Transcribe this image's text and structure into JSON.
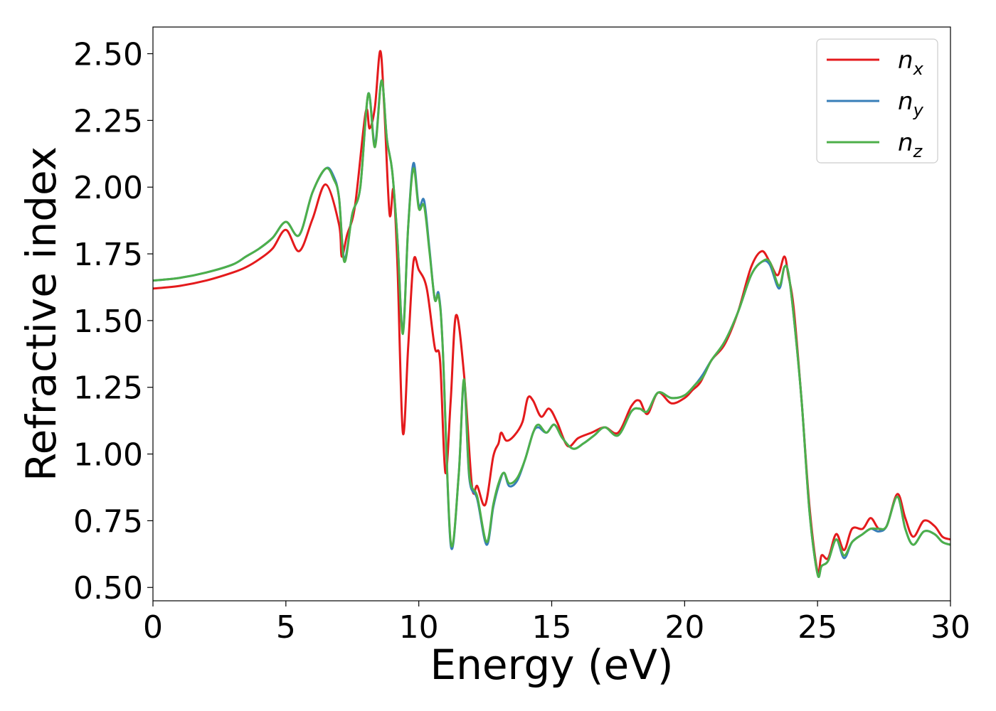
{
  "chart_data": {
    "type": "line",
    "xlabel": "Energy (eV)",
    "ylabel": "Refractive index",
    "xlim": [
      0,
      30
    ],
    "ylim": [
      0.45,
      2.6
    ],
    "xticks": [
      0,
      5,
      10,
      15,
      20,
      25,
      30
    ],
    "yticks": [
      0.5,
      0.75,
      1.0,
      1.25,
      1.5,
      1.75,
      2.0,
      2.25,
      2.5
    ],
    "ytick_labels": [
      "0.50",
      "0.75",
      "1.00",
      "1.25",
      "1.50",
      "1.75",
      "2.00",
      "2.25",
      "2.50"
    ],
    "grid": false,
    "legend_position": "upper right",
    "series": [
      {
        "name": "n",
        "subscript": "x",
        "color": "#e41a1c",
        "x": [
          0,
          1,
          2,
          3,
          3.5,
          4,
          4.5,
          5,
          5.5,
          6,
          6.5,
          7,
          7.1,
          7.3,
          7.6,
          8,
          8.15,
          8.35,
          8.55,
          8.7,
          8.9,
          9.05,
          9.2,
          9.4,
          9.6,
          9.8,
          10,
          10.3,
          10.6,
          10.8,
          11,
          11.2,
          11.4,
          11.7,
          12,
          12.2,
          12.5,
          12.8,
          13,
          13.1,
          13.3,
          13.6,
          13.9,
          14.1,
          14.3,
          14.6,
          14.9,
          15.2,
          15.6,
          16,
          16.5,
          17,
          17.5,
          18,
          18.3,
          18.6,
          19,
          19.5,
          20,
          20.3,
          20.6,
          21,
          21.5,
          22,
          22.5,
          22.9,
          23.2,
          23.5,
          23.75,
          23.9,
          24.1,
          24.4,
          24.7,
          25,
          25.15,
          25.4,
          25.7,
          26,
          26.3,
          26.7,
          27,
          27.3,
          27.6,
          28,
          28.3,
          28.6,
          29,
          29.4,
          29.7,
          30
        ],
        "values": [
          1.62,
          1.63,
          1.65,
          1.68,
          1.7,
          1.73,
          1.77,
          1.84,
          1.76,
          1.88,
          2.01,
          1.86,
          1.74,
          1.82,
          1.93,
          2.28,
          2.22,
          2.3,
          2.51,
          2.3,
          1.9,
          1.99,
          1.7,
          1.08,
          1.4,
          1.72,
          1.69,
          1.62,
          1.4,
          1.35,
          0.93,
          1.2,
          1.52,
          1.3,
          0.88,
          0.88,
          0.81,
          0.99,
          1.04,
          1.08,
          1.05,
          1.07,
          1.12,
          1.21,
          1.2,
          1.14,
          1.17,
          1.12,
          1.03,
          1.06,
          1.08,
          1.1,
          1.08,
          1.18,
          1.2,
          1.15,
          1.23,
          1.19,
          1.21,
          1.24,
          1.27,
          1.35,
          1.41,
          1.53,
          1.7,
          1.76,
          1.72,
          1.67,
          1.74,
          1.67,
          1.55,
          1.2,
          0.8,
          0.56,
          0.62,
          0.61,
          0.7,
          0.64,
          0.72,
          0.72,
          0.76,
          0.72,
          0.73,
          0.85,
          0.76,
          0.69,
          0.75,
          0.73,
          0.69,
          0.68
        ]
      },
      {
        "name": "n",
        "subscript": "y",
        "color": "#377eb8",
        "x": [
          0,
          1,
          2,
          3,
          3.5,
          4,
          4.5,
          5,
          5.5,
          6,
          6.5,
          6.8,
          7,
          7.2,
          7.5,
          7.8,
          8.1,
          8.35,
          8.6,
          8.8,
          9,
          9.2,
          9.4,
          9.6,
          9.8,
          10,
          10.2,
          10.4,
          10.6,
          10.75,
          10.9,
          11.2,
          11.5,
          11.7,
          11.9,
          12.2,
          12.55,
          12.8,
          13,
          13.2,
          13.4,
          13.7,
          14,
          14.3,
          14.5,
          14.8,
          15.1,
          15.4,
          15.8,
          16.2,
          16.6,
          17,
          17.5,
          18,
          18.3,
          18.6,
          19,
          19.5,
          20,
          20.4,
          20.7,
          21,
          21.5,
          22,
          22.5,
          22.9,
          23.2,
          23.55,
          23.75,
          23.9,
          24.1,
          24.4,
          24.7,
          25,
          25.15,
          25.4,
          25.7,
          26,
          26.3,
          26.7,
          27,
          27.3,
          27.6,
          28,
          28.3,
          28.6,
          29,
          29.4,
          29.7,
          30
        ],
        "values": [
          1.65,
          1.66,
          1.68,
          1.71,
          1.74,
          1.77,
          1.81,
          1.87,
          1.82,
          1.98,
          2.07,
          2.04,
          1.96,
          1.73,
          1.9,
          2.0,
          2.35,
          2.16,
          2.4,
          2.18,
          2.06,
          1.8,
          1.46,
          1.85,
          2.09,
          1.93,
          1.95,
          1.77,
          1.58,
          1.6,
          1.4,
          0.66,
          0.92,
          1.27,
          0.91,
          0.83,
          0.66,
          0.8,
          0.88,
          0.93,
          0.88,
          0.9,
          0.98,
          1.08,
          1.1,
          1.08,
          1.11,
          1.06,
          1.02,
          1.04,
          1.07,
          1.1,
          1.07,
          1.16,
          1.17,
          1.16,
          1.23,
          1.21,
          1.22,
          1.26,
          1.3,
          1.35,
          1.42,
          1.53,
          1.67,
          1.72,
          1.71,
          1.62,
          1.7,
          1.68,
          1.52,
          1.2,
          0.78,
          0.55,
          0.58,
          0.6,
          0.68,
          0.61,
          0.67,
          0.7,
          0.72,
          0.71,
          0.73,
          0.84,
          0.72,
          0.66,
          0.71,
          0.7,
          0.67,
          0.66
        ]
      },
      {
        "name": "n",
        "subscript": "z",
        "color": "#4daf4a",
        "x": [
          0,
          1,
          2,
          3,
          3.5,
          4,
          4.5,
          5,
          5.5,
          6,
          6.5,
          6.8,
          7,
          7.2,
          7.5,
          7.8,
          8.1,
          8.35,
          8.6,
          8.8,
          9,
          9.2,
          9.4,
          9.6,
          9.8,
          10,
          10.2,
          10.4,
          10.6,
          10.75,
          10.9,
          11.2,
          11.5,
          11.7,
          11.9,
          12.2,
          12.55,
          12.8,
          13,
          13.2,
          13.4,
          13.7,
          14,
          14.3,
          14.5,
          14.8,
          15.1,
          15.4,
          15.8,
          16.2,
          16.6,
          17,
          17.5,
          18,
          18.3,
          18.6,
          19,
          19.5,
          20,
          20.4,
          20.7,
          21,
          21.5,
          22,
          22.5,
          22.9,
          23.2,
          23.55,
          23.75,
          23.9,
          24.1,
          24.4,
          24.7,
          25,
          25.15,
          25.4,
          25.7,
          26,
          26.3,
          26.7,
          27,
          27.3,
          27.6,
          28,
          28.3,
          28.6,
          29,
          29.4,
          29.7,
          30
        ],
        "values": [
          1.65,
          1.66,
          1.68,
          1.71,
          1.74,
          1.77,
          1.81,
          1.87,
          1.82,
          1.98,
          2.07,
          2.03,
          1.96,
          1.72,
          1.9,
          2.0,
          2.35,
          2.15,
          2.4,
          2.18,
          2.06,
          1.8,
          1.45,
          1.85,
          2.07,
          1.92,
          1.93,
          1.76,
          1.58,
          1.59,
          1.4,
          0.67,
          0.92,
          1.28,
          0.92,
          0.84,
          0.67,
          0.81,
          0.89,
          0.93,
          0.89,
          0.91,
          0.98,
          1.08,
          1.11,
          1.08,
          1.11,
          1.06,
          1.02,
          1.04,
          1.07,
          1.1,
          1.07,
          1.16,
          1.17,
          1.16,
          1.23,
          1.21,
          1.22,
          1.26,
          1.29,
          1.35,
          1.42,
          1.53,
          1.67,
          1.72,
          1.72,
          1.63,
          1.7,
          1.68,
          1.52,
          1.2,
          0.78,
          0.55,
          0.58,
          0.6,
          0.68,
          0.62,
          0.67,
          0.7,
          0.72,
          0.72,
          0.73,
          0.84,
          0.72,
          0.66,
          0.71,
          0.7,
          0.67,
          0.66
        ]
      }
    ]
  }
}
